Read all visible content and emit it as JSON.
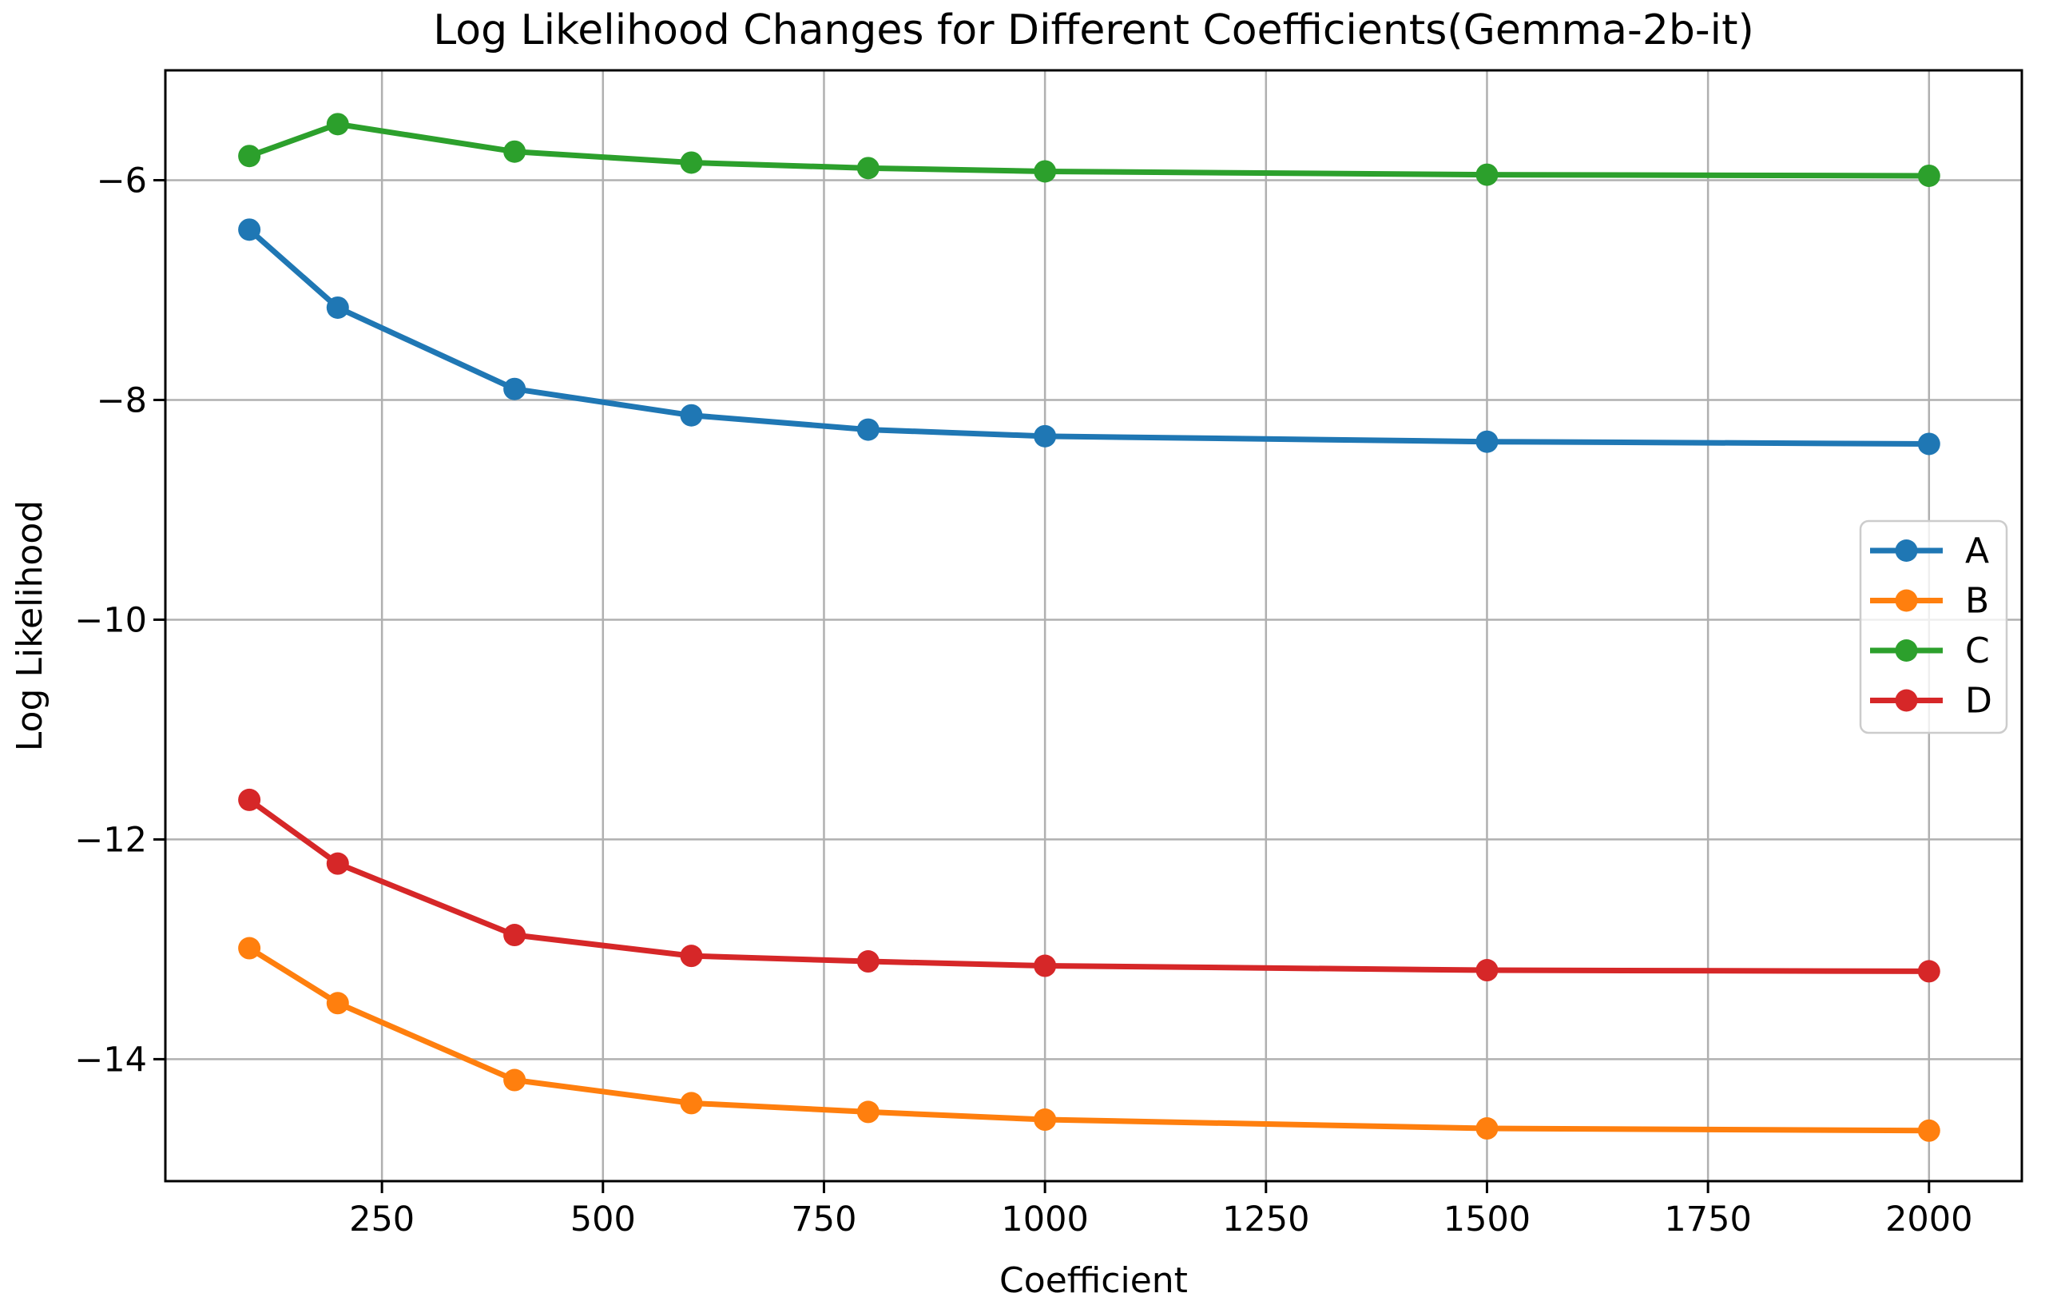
{
  "chart_data": {
    "type": "line",
    "title": "Log Likelihood Changes for Different Coefficients(Gemma-2b-it)",
    "xlabel": "Coefficient",
    "ylabel": "Log Likelihood",
    "x": [
      100,
      200,
      400,
      600,
      800,
      1000,
      1500,
      2000
    ],
    "series": [
      {
        "name": "A",
        "color": "#1f77b4",
        "values": [
          -6.45,
          -7.16,
          -7.9,
          -8.14,
          -8.27,
          -8.33,
          -8.38,
          -8.4
        ]
      },
      {
        "name": "B",
        "color": "#ff7f0e",
        "values": [
          -12.99,
          -13.49,
          -14.19,
          -14.4,
          -14.48,
          -14.55,
          -14.63,
          -14.65
        ]
      },
      {
        "name": "C",
        "color": "#2ca02c",
        "values": [
          -5.78,
          -5.49,
          -5.74,
          -5.84,
          -5.89,
          -5.92,
          -5.95,
          -5.96
        ]
      },
      {
        "name": "D",
        "color": "#d62728",
        "values": [
          -11.64,
          -12.22,
          -12.87,
          -13.06,
          -13.11,
          -13.15,
          -13.19,
          -13.2
        ]
      }
    ],
    "xlim": [
      5,
      2105
    ],
    "ylim": [
      -15.11,
      -5.0
    ],
    "xticks": {
      "values": [
        250,
        500,
        750,
        1000,
        1250,
        1500,
        1750,
        2000
      ],
      "labels": [
        "250",
        "500",
        "750",
        "1000",
        "1250",
        "1500",
        "1750",
        "2000"
      ]
    },
    "yticks": {
      "values": [
        -6,
        -8,
        -10,
        -12,
        -14
      ],
      "labels": [
        "−6",
        "−8",
        "−10",
        "−12",
        "−14"
      ]
    },
    "grid": true,
    "grid_color": "#b0b0b0",
    "spine_color": "#000000",
    "legend": {
      "position": "center right",
      "entries": [
        "A",
        "B",
        "C",
        "D"
      ]
    }
  }
}
